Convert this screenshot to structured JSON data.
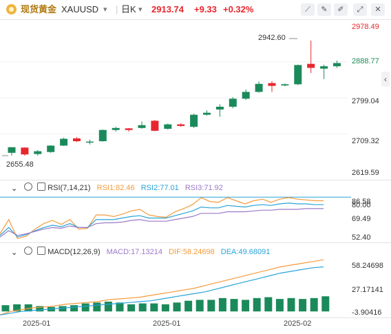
{
  "header": {
    "symbol_name": "现货黄金",
    "symbol_code": "XAUUSD",
    "symbol_dropdown": "▾",
    "interval": "日K",
    "interval_dropdown": "▾",
    "last_price": "2913.74",
    "change": "+9.33",
    "change_pct": "+0.32%",
    "colors": {
      "up": "#e8262d",
      "down": "#1b8a5a"
    },
    "tools": [
      "draw-line-icon",
      "pencil-icon",
      "brush-icon",
      "expand-icon",
      "close-icon"
    ]
  },
  "price_axis": {
    "labels": [
      "2978.49",
      "2888.77",
      "2799.04",
      "2709.32",
      "2619.59"
    ],
    "top_label_color": "#e8262d",
    "mid_label_color": "#1b8a5a"
  },
  "annotations": {
    "high": "2942.60",
    "low": "2655.48"
  },
  "rsi": {
    "name": "RSI(7,14,21)",
    "rsi1": "RSI1:82.46",
    "rsi2": "RSI2:77.01",
    "rsi3": "RSI3:71.92",
    "colors": [
      "#f59a3b",
      "#29a3d8",
      "#9b79c9"
    ],
    "axis_labels": [
      "86.58",
      "80.00",
      "69.49",
      "52.40"
    ]
  },
  "macd": {
    "name": "MACD(12,26,9)",
    "macd": "MACD:17.13214",
    "dif": "DIF:58.24698",
    "dea": "DEA:49.68091",
    "colors": [
      "#9b79c9",
      "#f59a3b",
      "#29a3d8"
    ],
    "axis_labels": [
      "58.24698",
      "27.17141",
      "-3.90416"
    ]
  },
  "dates": [
    "2025-01",
    "2025-01",
    "2025-02"
  ],
  "chart_data": {
    "type": "candlestick",
    "ylim": [
      2600,
      2990
    ],
    "candles": [
      {
        "o": 2662,
        "h": 2676,
        "l": 2655,
        "c": 2676
      },
      {
        "o": 2675,
        "h": 2676,
        "l": 2655,
        "c": 2658
      },
      {
        "o": 2659,
        "h": 2669,
        "l": 2655,
        "c": 2666
      },
      {
        "o": 2664,
        "h": 2681,
        "l": 2662,
        "c": 2680
      },
      {
        "o": 2680,
        "h": 2700,
        "l": 2679,
        "c": 2697
      },
      {
        "o": 2698,
        "h": 2701,
        "l": 2689,
        "c": 2691
      },
      {
        "o": 2690,
        "h": 2695,
        "l": 2683,
        "c": 2690
      },
      {
        "o": 2691,
        "h": 2720,
        "l": 2690,
        "c": 2719
      },
      {
        "o": 2719,
        "h": 2727,
        "l": 2715,
        "c": 2724
      },
      {
        "o": 2723,
        "h": 2724,
        "l": 2715,
        "c": 2719
      },
      {
        "o": 2724,
        "h": 2740,
        "l": 2722,
        "c": 2731
      },
      {
        "o": 2742,
        "h": 2744,
        "l": 2716,
        "c": 2717
      },
      {
        "o": 2722,
        "h": 2735,
        "l": 2720,
        "c": 2733
      },
      {
        "o": 2733,
        "h": 2736,
        "l": 2727,
        "c": 2729
      },
      {
        "o": 2727,
        "h": 2760,
        "l": 2724,
        "c": 2757
      },
      {
        "o": 2757,
        "h": 2768,
        "l": 2755,
        "c": 2762
      },
      {
        "o": 2770,
        "h": 2783,
        "l": 2752,
        "c": 2777
      },
      {
        "o": 2777,
        "h": 2801,
        "l": 2773,
        "c": 2797
      },
      {
        "o": 2797,
        "h": 2820,
        "l": 2794,
        "c": 2814
      },
      {
        "o": 2814,
        "h": 2840,
        "l": 2812,
        "c": 2834
      },
      {
        "o": 2836,
        "h": 2841,
        "l": 2814,
        "c": 2829
      },
      {
        "o": 2830,
        "h": 2835,
        "l": 2828,
        "c": 2833
      },
      {
        "o": 2833,
        "h": 2882,
        "l": 2831,
        "c": 2881
      },
      {
        "o": 2884,
        "h": 2942,
        "l": 2861,
        "c": 2874
      },
      {
        "o": 2872,
        "h": 2882,
        "l": 2846,
        "c": 2878
      },
      {
        "o": 2878,
        "h": 2892,
        "l": 2874,
        "c": 2886
      }
    ],
    "rsi_series": {
      "rsi1": [
        40,
        58,
        34,
        37,
        46,
        53,
        57,
        52,
        58,
        46,
        47,
        64,
        64,
        62,
        65,
        69,
        71,
        64,
        62,
        61,
        68,
        72,
        77,
        86,
        81,
        80,
        86,
        82,
        78,
        82,
        84,
        80,
        84,
        86,
        84,
        83,
        82,
        82
      ],
      "rsi2": [
        38,
        48,
        36,
        39,
        44,
        48,
        51,
        49,
        53,
        48,
        48,
        58,
        58,
        58,
        60,
        62,
        63,
        60,
        60,
        60,
        63,
        66,
        69,
        74,
        73,
        73,
        76,
        75,
        74,
        76,
        77,
        76,
        78,
        79,
        78,
        78,
        77,
        77
      ],
      "rsi3": [
        36,
        44,
        38,
        40,
        43,
        46,
        48,
        47,
        50,
        48,
        48,
        53,
        54,
        54,
        55,
        57,
        58,
        56,
        56,
        56,
        58,
        60,
        62,
        66,
        66,
        66,
        68,
        68,
        68,
        69,
        70,
        70,
        71,
        71,
        71,
        72,
        72,
        72
      ]
    },
    "macd_series": {
      "dif": [
        -3.9,
        0,
        2,
        4,
        5,
        6,
        8,
        9,
        10,
        11,
        13,
        14,
        15,
        16,
        18,
        20,
        22,
        24,
        26,
        29,
        32,
        35,
        38,
        41,
        44,
        47,
        50,
        52,
        54,
        56,
        58
      ],
      "dea": [
        -3.9,
        -2,
        0,
        1,
        2,
        3,
        4,
        5,
        6,
        7,
        8,
        9,
        10,
        11,
        12,
        14,
        16,
        18,
        20,
        22,
        25,
        28,
        31,
        34,
        37,
        40,
        43,
        45,
        47,
        49,
        50
      ],
      "hist": [
        7,
        8,
        8,
        6,
        5,
        6,
        7,
        9,
        10,
        11,
        10,
        8,
        9,
        9,
        8,
        10,
        12,
        13,
        13,
        15,
        14,
        13,
        15,
        16,
        14,
        15,
        14,
        15,
        17
      ]
    }
  }
}
